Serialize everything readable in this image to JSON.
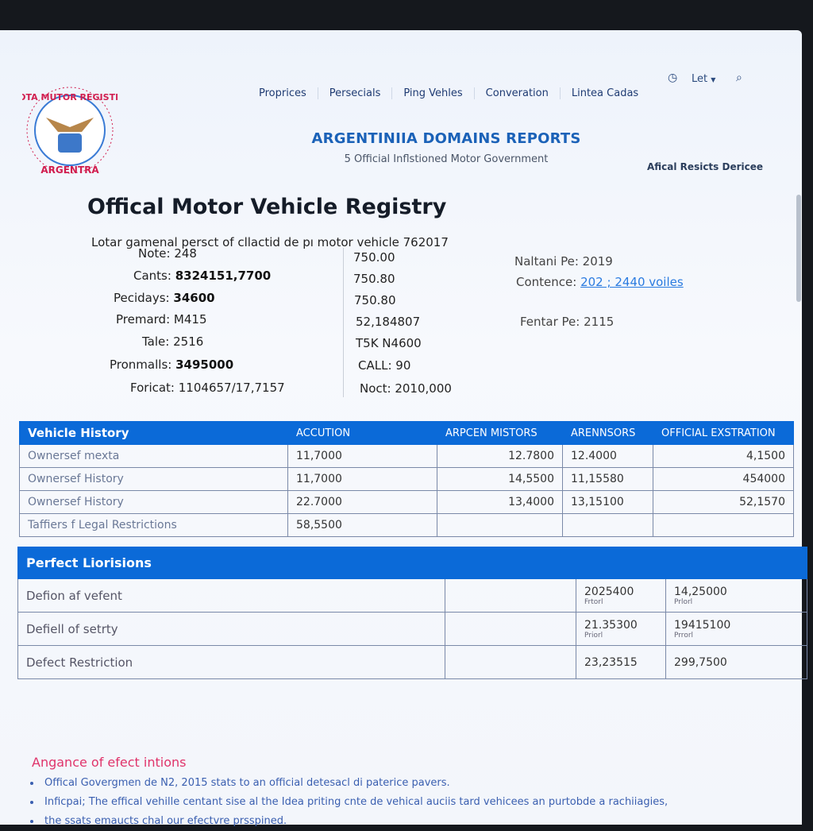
{
  "logo": {
    "top_text": "NOTA MUTOR REGISTRA",
    "bottom_text": "ARGENTRA"
  },
  "nav": {
    "items": [
      "Proprices",
      "Persecials",
      "Ping Vehles",
      "Converation",
      "Lintea Cadas"
    ],
    "lang_label": "Let",
    "icons": [
      "clock-icon",
      "chevron-down-icon",
      "search-icon"
    ]
  },
  "header": {
    "title": "ARGENTINIIA DOMAINS REPORTS",
    "subtitle": "5 Official Inflstioned Motor Government",
    "right_label": "Afical Resicts Dericee"
  },
  "page": {
    "title": "Offical Motor Vehicle Registry",
    "description": "Lotar gamenal persct of cllactid de pı motor vehicle 762017"
  },
  "info_left": [
    {
      "label": "Note:",
      "value": "248",
      "bold": false
    },
    {
      "label": "Cants:",
      "value": "8324151,7700",
      "bold": true
    },
    {
      "label": "Pecidays:",
      "value": "34600",
      "bold": true
    },
    {
      "label": "Premard:",
      "value": "M415",
      "bold": false
    },
    {
      "label": "Tale:",
      "value": "2516",
      "bold": false
    },
    {
      "label": "Pronmalls:",
      "value": "3495000",
      "bold": true
    },
    {
      "label": "Foricat:",
      "value": "1104657/17,7157",
      "bold": false
    }
  ],
  "info_middle": [
    "750.00",
    "750.80",
    "750.80",
    "52,184807",
    "T5K N4600",
    "CALL: 90",
    "Noct: 2010,000"
  ],
  "info_right": [
    {
      "label": "Naltani Pe:",
      "value": "2019"
    },
    {
      "label": "Contence:",
      "value": "202 ; 2440 voiles",
      "link": true
    },
    {
      "label": "Fentar Pe:",
      "value": "2115"
    }
  ],
  "vehicle_history": {
    "headers": [
      "Vehicle History",
      "ACCUTION",
      "ARPCEN MISTORS",
      "ARENNSORS",
      "OFFICIAL EXSTRATION"
    ],
    "rows": [
      [
        "Ownersef mexta",
        "11,7000",
        "12.7800",
        "12.4000",
        "4,1500"
      ],
      [
        "Ownersef History",
        "11,7000",
        "14,5500",
        "11,15580",
        "454000"
      ],
      [
        "Ownersef History",
        "22.7000",
        "13,4000",
        "13,15100",
        "52,1570"
      ],
      [
        "Taffiers f Legal Restrictions",
        "58,5500",
        "",
        "",
        ""
      ]
    ]
  },
  "perfect": {
    "title": "Perfect Liorisions",
    "rows": [
      {
        "label": "Defion af vefent",
        "c3": "2025400",
        "c3_sub": "Frtorl",
        "c4": "14,25000",
        "c4_sub": "Prlorl"
      },
      {
        "label": "Defiell of setrty",
        "c3": "21.35300",
        "c3_sub": "Priorl",
        "c4": "19415100",
        "c4_sub": "Prrorl"
      },
      {
        "label": "Defect Restriction",
        "c3": "23,23515",
        "c3_sub": "",
        "c4": "299,7500",
        "c4_sub": ""
      }
    ]
  },
  "notes": {
    "title": "Angance of efect intions",
    "bullets": [
      "Offical Govergmen de N2, 2015 stats to an official detesacl di paterice pavers.",
      "Inficpai; The effical vehille centant sise al the Idea priting cnte de vehical auciis tard vehicees an purtobde a rachiiagies,",
      "the ssats emaucts chal our efectvre prsspined."
    ]
  },
  "colors": {
    "accent": "#0b6ad8",
    "heading_blue": "#1b62b8",
    "pink": "#e0336a",
    "link": "#2a7be0"
  }
}
